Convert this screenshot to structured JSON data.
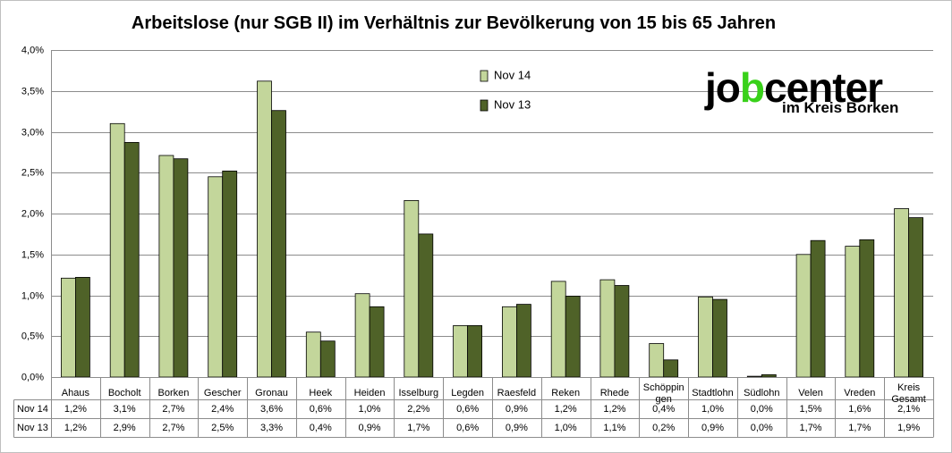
{
  "colors": {
    "nov14": "#c3d69b",
    "nov13": "#4f6228",
    "logo_accent": "#39d11a"
  },
  "logo": {
    "text": "jobcenter",
    "subtitle": "im Kreis Borken"
  },
  "chart_data": {
    "type": "bar",
    "title": "Arbeitslose (nur SGB II) im Verhältnis zur Bevölkerung von 15 bis 65 Jahren",
    "xlabel": "",
    "ylabel": "",
    "ylim": [
      0,
      4.0
    ],
    "yticks": [
      "0,0%",
      "0,5%",
      "1,0%",
      "1,5%",
      "2,0%",
      "2,5%",
      "3,0%",
      "3,5%",
      "4,0%"
    ],
    "grid": true,
    "legend_position": "top-center",
    "categories": [
      [
        "Ahaus"
      ],
      [
        "Bocholt"
      ],
      [
        "Borken"
      ],
      [
        "Gescher"
      ],
      [
        "Gronau"
      ],
      [
        "Heek"
      ],
      [
        "Heiden"
      ],
      [
        "Isselburg"
      ],
      [
        "Legden"
      ],
      [
        "Raesfeld"
      ],
      [
        "Reken"
      ],
      [
        "Rhede"
      ],
      [
        "Schöppin",
        "gen"
      ],
      [
        "Stadtlohn"
      ],
      [
        "Südlohn"
      ],
      [
        "Velen"
      ],
      [
        "Vreden"
      ],
      [
        "Kreis",
        "Gesamt"
      ]
    ],
    "series": [
      {
        "name": "Nov 14",
        "values": [
          1.21,
          3.1,
          2.71,
          2.45,
          3.62,
          0.55,
          1.02,
          2.16,
          0.63,
          0.86,
          1.17,
          1.19,
          0.41,
          0.98,
          0.01,
          1.5,
          1.6,
          2.06
        ],
        "labels": [
          "1,2%",
          "3,1%",
          "2,7%",
          "2,4%",
          "3,6%",
          "0,6%",
          "1,0%",
          "2,2%",
          "0,6%",
          "0,9%",
          "1,2%",
          "1,2%",
          "0,4%",
          "1,0%",
          "0,0%",
          "1,5%",
          "1,6%",
          "2,1%"
        ]
      },
      {
        "name": "Nov 13",
        "values": [
          1.22,
          2.87,
          2.67,
          2.52,
          3.26,
          0.44,
          0.86,
          1.75,
          0.63,
          0.89,
          0.99,
          1.12,
          0.21,
          0.95,
          0.03,
          1.67,
          1.68,
          1.95
        ],
        "labels": [
          "1,2%",
          "2,9%",
          "2,7%",
          "2,5%",
          "3,3%",
          "0,4%",
          "0,9%",
          "1,7%",
          "0,6%",
          "0,9%",
          "1,0%",
          "1,1%",
          "0,2%",
          "0,9%",
          "0,0%",
          "1,7%",
          "1,7%",
          "1,9%"
        ]
      }
    ]
  }
}
